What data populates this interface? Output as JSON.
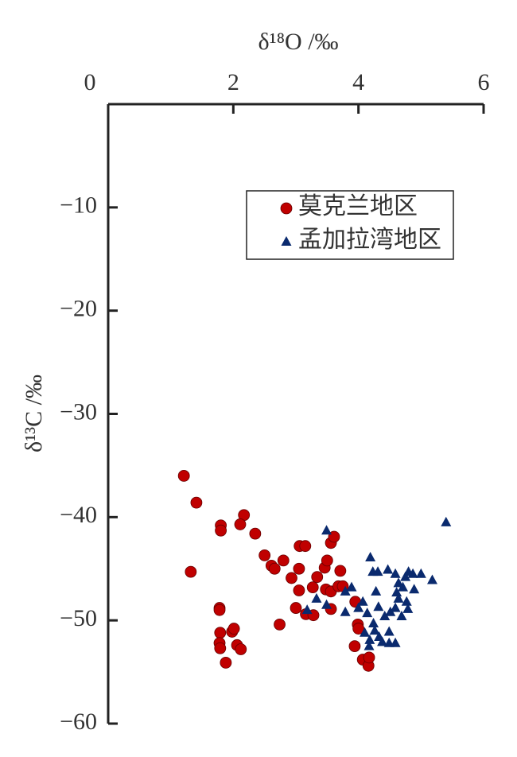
{
  "chart_data": {
    "type": "scatter",
    "x_label": "δ¹⁸O /‰",
    "y_label": "δ¹³C /‰",
    "xlim": [
      0,
      6
    ],
    "ylim": [
      -60,
      0
    ],
    "xticks": [
      0,
      2,
      4,
      6
    ],
    "yticks": [
      {
        "value": -10,
        "label": "−10"
      },
      {
        "value": -20,
        "label": "−20"
      },
      {
        "value": -30,
        "label": "−30"
      },
      {
        "value": -40,
        "label": "−40"
      },
      {
        "value": -50,
        "label": "−50"
      },
      {
        "value": -60,
        "label": "−60"
      }
    ],
    "legend": "upper right",
    "series": [
      {
        "name": "莫克兰地区",
        "color": "#c00000",
        "marker": "circle",
        "x": [
          1.21,
          1.41,
          1.32,
          1.8,
          1.8,
          2.17,
          2.11,
          2.35,
          2.5,
          2.61,
          2.66,
          2.8,
          3.06,
          3.15,
          3.05,
          2.93,
          3.05,
          3.0,
          2.74,
          3.16,
          3.28,
          3.27,
          3.34,
          3.46,
          3.5,
          3.56,
          3.61,
          3.48,
          3.56,
          3.68,
          3.75,
          3.71,
          3.56,
          3.95,
          3.99,
          4.0,
          3.94,
          4.07,
          4.16,
          4.17,
          1.78,
          1.78,
          1.79,
          1.78,
          1.79,
          1.98,
          2.01,
          2.06,
          2.12,
          1.88
        ],
        "y": [
          -36.0,
          -38.6,
          -45.3,
          -40.8,
          -41.3,
          -39.8,
          -40.7,
          -41.6,
          -43.7,
          -44.7,
          -45.0,
          -44.2,
          -42.8,
          -42.8,
          -45.0,
          -45.9,
          -47.1,
          -48.8,
          -50.4,
          -49.4,
          -49.5,
          -46.8,
          -45.8,
          -44.9,
          -44.2,
          -42.5,
          -41.9,
          -47.0,
          -47.2,
          -46.7,
          -46.7,
          -45.2,
          -48.9,
          -48.2,
          -50.4,
          -50.8,
          -52.5,
          -53.8,
          -54.4,
          -53.6,
          -48.8,
          -49.0,
          -51.2,
          -52.2,
          -52.7,
          -51.1,
          -50.8,
          -52.4,
          -52.8,
          -54.1
        ]
      },
      {
        "name": "孟加拉湾地区",
        "color": "#0a2a6e",
        "marker": "triangle",
        "x": [
          3.49,
          5.4,
          4.19,
          4.23,
          4.31,
          4.47,
          4.59,
          4.64,
          4.75,
          4.8,
          4.87,
          5.0,
          5.18,
          4.71,
          4.89,
          4.61,
          4.28,
          4.07,
          3.89,
          3.79,
          3.33,
          3.18,
          3.79,
          4.0,
          4.14,
          4.32,
          4.51,
          4.59,
          4.64,
          4.77,
          4.79,
          4.69,
          4.42,
          4.24,
          4.1,
          4.26,
          4.33,
          4.49,
          4.17,
          4.38,
          4.49,
          4.59,
          4.18,
          3.49
        ],
        "y": [
          -41.3,
          -40.5,
          -43.9,
          -45.3,
          -45.3,
          -45.1,
          -45.5,
          -46.4,
          -45.8,
          -45.3,
          -45.5,
          -45.5,
          -46.1,
          -46.8,
          -47.0,
          -47.3,
          -47.2,
          -48.2,
          -46.8,
          -47.2,
          -47.9,
          -49.0,
          -49.2,
          -48.8,
          -49.3,
          -48.7,
          -49.2,
          -48.8,
          -47.9,
          -48.2,
          -48.9,
          -49.6,
          -49.6,
          -50.3,
          -51.2,
          -51.0,
          -51.6,
          -51.1,
          -52.5,
          -52.1,
          -52.2,
          -52.2,
          -51.9,
          -48.5
        ]
      }
    ]
  }
}
